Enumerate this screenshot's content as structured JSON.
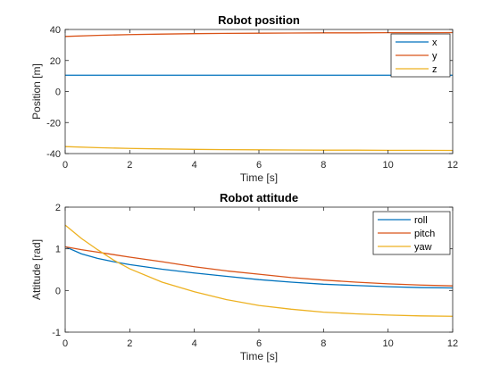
{
  "chart_data": [
    {
      "type": "line",
      "title": "Robot position",
      "xlabel": "Time [s]",
      "ylabel": "Position [m]",
      "xlim": [
        0,
        12
      ],
      "ylim": [
        -40,
        40
      ],
      "xticks": [
        "0",
        "2",
        "4",
        "6",
        "8",
        "10",
        "12"
      ],
      "yticks": [
        "-40",
        "-20",
        "0",
        "20",
        "40"
      ],
      "grid": false,
      "legend": "top-right",
      "x": [
        0,
        1,
        2,
        3,
        4,
        5,
        6,
        7,
        8,
        9,
        10,
        11,
        12
      ],
      "series": [
        {
          "name": "x",
          "color": "#0072BD",
          "values": [
            10.5,
            10.5,
            10.5,
            10.5,
            10.5,
            10.5,
            10.5,
            10.5,
            10.5,
            10.5,
            10.5,
            10.5,
            10.5
          ]
        },
        {
          "name": "y",
          "color": "#D95319",
          "values": [
            35.5,
            36.2,
            36.7,
            37.0,
            37.3,
            37.5,
            37.6,
            37.7,
            37.8,
            37.8,
            37.9,
            37.9,
            38.0
          ]
        },
        {
          "name": "z",
          "color": "#EDB120",
          "values": [
            -35.5,
            -36.2,
            -36.7,
            -37.0,
            -37.3,
            -37.5,
            -37.6,
            -37.7,
            -37.8,
            -37.8,
            -37.9,
            -37.9,
            -38.0
          ]
        }
      ]
    },
    {
      "type": "line",
      "title": "Robot attitude",
      "xlabel": "Time [s]",
      "ylabel": "Attitude [rad]",
      "xlim": [
        0,
        12
      ],
      "ylim": [
        -1,
        2
      ],
      "xticks": [
        "0",
        "2",
        "4",
        "6",
        "8",
        "10",
        "12"
      ],
      "yticks": [
        "-1",
        "0",
        "1",
        "2"
      ],
      "grid": false,
      "legend": "top-right",
      "x": [
        0,
        0.5,
        1,
        1.5,
        2,
        3,
        4,
        5,
        6,
        7,
        8,
        9,
        10,
        11,
        12
      ],
      "series": [
        {
          "name": "roll",
          "color": "#0072BD",
          "values": [
            1.05,
            0.88,
            0.77,
            0.69,
            0.62,
            0.51,
            0.42,
            0.34,
            0.26,
            0.2,
            0.15,
            0.12,
            0.09,
            0.07,
            0.06
          ]
        },
        {
          "name": "pitch",
          "color": "#D95319",
          "values": [
            1.05,
            0.98,
            0.92,
            0.86,
            0.8,
            0.69,
            0.57,
            0.47,
            0.39,
            0.31,
            0.25,
            0.2,
            0.16,
            0.13,
            0.11
          ]
        },
        {
          "name": "yaw",
          "color": "#EDB120",
          "values": [
            1.57,
            1.25,
            0.98,
            0.73,
            0.52,
            0.2,
            -0.03,
            -0.22,
            -0.36,
            -0.45,
            -0.52,
            -0.56,
            -0.59,
            -0.61,
            -0.62
          ]
        }
      ]
    }
  ]
}
